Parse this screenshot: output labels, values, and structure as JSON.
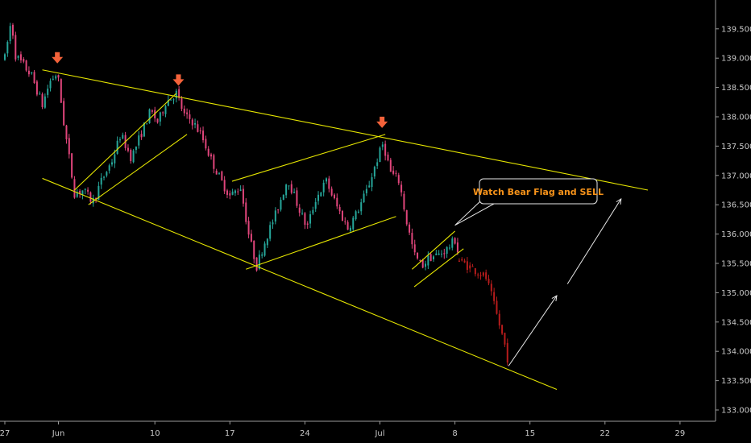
{
  "colors": {
    "background": "#000000",
    "axis": "#9a9a9a",
    "tick_text": "#c8c8c8",
    "up": "#26a69a",
    "down": "#e0457b",
    "projected": "#b71c1c",
    "trendline": "#e6e600",
    "marker": "#f4623a",
    "note_text": "#f7931a",
    "projection_arrow": "#e8e8e8"
  },
  "chart_data": {
    "type": "candlestick",
    "title": "",
    "xlabel": "",
    "ylabel": "",
    "ylim": [
      132.95,
      139.95
    ],
    "y_ticks": [
      133.0,
      133.5,
      134.0,
      134.5,
      135.0,
      135.5,
      136.0,
      136.5,
      137.0,
      137.5,
      138.0,
      138.5,
      139.0,
      139.5
    ],
    "y_tick_labels": [
      "133.000",
      "133.500",
      "134.000",
      "134.500",
      "135.000",
      "135.500",
      "136.000",
      "136.500",
      "137.000",
      "137.500",
      "138.000",
      "138.500",
      "139.000",
      "139.500"
    ],
    "x_ticks": [
      {
        "label": "27",
        "day": 0
      },
      {
        "label": "Jun",
        "day": 5
      },
      {
        "label": "10",
        "day": 14
      },
      {
        "label": "17",
        "day": 21
      },
      {
        "label": "24",
        "day": 28
      },
      {
        "label": "Jul",
        "day": 35
      },
      {
        "label": "8",
        "day": 42
      },
      {
        "label": "15",
        "day": 49
      },
      {
        "label": "22",
        "day": 56
      },
      {
        "label": "29",
        "day": 63
      }
    ],
    "price_path": [
      [
        0.0,
        139.0
      ],
      [
        0.6,
        139.65
      ],
      [
        1.0,
        139.05
      ],
      [
        2.5,
        138.7
      ],
      [
        3.5,
        138.2
      ],
      [
        4.2,
        138.6
      ],
      [
        4.9,
        138.75
      ],
      [
        5.5,
        137.9
      ],
      [
        6.5,
        136.7
      ],
      [
        7.3,
        136.75
      ],
      [
        8.2,
        136.55
      ],
      [
        9.0,
        136.9
      ],
      [
        10.0,
        137.25
      ],
      [
        10.8,
        137.7
      ],
      [
        11.8,
        137.3
      ],
      [
        12.8,
        137.75
      ],
      [
        13.6,
        138.1
      ],
      [
        14.3,
        137.9
      ],
      [
        15.0,
        138.25
      ],
      [
        16.0,
        138.4
      ],
      [
        16.8,
        138.0
      ],
      [
        17.4,
        137.95
      ],
      [
        18.3,
        137.7
      ],
      [
        19.3,
        137.25
      ],
      [
        20.2,
        136.9
      ],
      [
        21.0,
        136.65
      ],
      [
        22.0,
        136.8
      ],
      [
        22.8,
        135.95
      ],
      [
        23.5,
        135.45
      ],
      [
        24.4,
        135.95
      ],
      [
        25.3,
        136.35
      ],
      [
        26.4,
        136.95
      ],
      [
        27.2,
        136.55
      ],
      [
        28.2,
        136.1
      ],
      [
        29.0,
        136.6
      ],
      [
        30.0,
        136.9
      ],
      [
        30.9,
        136.5
      ],
      [
        32.0,
        136.1
      ],
      [
        32.8,
        136.35
      ],
      [
        33.8,
        136.75
      ],
      [
        34.7,
        137.25
      ],
      [
        35.3,
        137.55
      ],
      [
        36.0,
        137.05
      ],
      [
        36.8,
        136.9
      ],
      [
        37.5,
        136.2
      ],
      [
        38.2,
        135.65
      ],
      [
        38.9,
        135.45
      ],
      [
        39.6,
        135.6
      ],
      [
        40.5,
        135.65
      ],
      [
        41.3,
        135.75
      ],
      [
        42.0,
        135.9
      ],
      [
        42.4,
        135.6
      ]
    ],
    "projected_path": [
      [
        42.4,
        135.55
      ],
      [
        43.3,
        135.45
      ],
      [
        44.2,
        135.35
      ],
      [
        44.9,
        135.25
      ],
      [
        45.4,
        134.95
      ],
      [
        46.0,
        134.55
      ],
      [
        46.6,
        134.15
      ],
      [
        47.0,
        133.8
      ]
    ],
    "trendlines": [
      {
        "from": [
          3.5,
          138.8
        ],
        "to": [
          60.0,
          136.75
        ]
      },
      {
        "from": [
          3.5,
          136.95
        ],
        "to": [
          51.5,
          133.35
        ]
      },
      {
        "from": [
          6.5,
          136.75
        ],
        "to": [
          16.0,
          138.4
        ]
      },
      {
        "from": [
          7.8,
          136.5
        ],
        "to": [
          17.0,
          137.7
        ]
      },
      {
        "from": [
          21.2,
          136.9
        ],
        "to": [
          35.5,
          137.7
        ]
      },
      {
        "from": [
          22.5,
          135.4
        ],
        "to": [
          36.5,
          136.3
        ]
      },
      {
        "from": [
          38.0,
          135.4
        ],
        "to": [
          42.0,
          136.05
        ]
      },
      {
        "from": [
          38.2,
          135.1
        ],
        "to": [
          42.8,
          135.75
        ]
      }
    ],
    "markers": [
      {
        "day": 4.9,
        "price": 138.8
      },
      {
        "day": 16.2,
        "price": 138.42
      },
      {
        "day": 35.2,
        "price": 137.7
      }
    ],
    "annotation": {
      "text": "Watch Bear Flag and SELL",
      "pointer_day": 42.0,
      "pointer_price": 136.15
    },
    "projection_arrows": [
      {
        "from": [
          47.0,
          133.75
        ],
        "to": [
          51.5,
          134.95
        ]
      },
      {
        "from": [
          52.5,
          135.15
        ],
        "to": [
          57.5,
          136.6
        ]
      }
    ]
  }
}
